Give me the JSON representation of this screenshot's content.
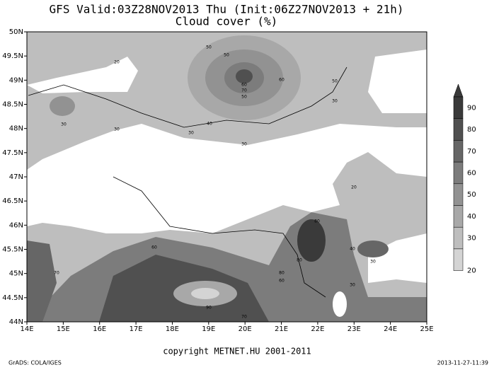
{
  "header": {
    "title": "GFS Valid:03Z28NOV2013 Thu (Init:06Z27NOV2013 + 21h)",
    "subtitle": "Cloud cover (%)"
  },
  "map": {
    "lat_labels": [
      "50N",
      "49.5N",
      "49N",
      "48.5N",
      "48N",
      "47.5N",
      "47N",
      "46.5N",
      "46N",
      "45.5N",
      "45N",
      "44.5N",
      "44N"
    ],
    "lon_labels": [
      "14E",
      "15E",
      "16E",
      "17E",
      "18E",
      "19E",
      "20E",
      "21E",
      "22E",
      "23E",
      "24E",
      "25E"
    ],
    "contour_labels": [
      "20",
      "30",
      "30",
      "50",
      "50",
      "60",
      "70",
      "50",
      "40",
      "30",
      "30",
      "50",
      "30",
      "20",
      "80",
      "60",
      "70",
      "80",
      "90",
      "70",
      "80",
      "60",
      "30",
      "30",
      "40",
      "60"
    ]
  },
  "colorbar": {
    "labels": [
      "90",
      "80",
      "70",
      "60",
      "50",
      "40",
      "30",
      "20"
    ]
  },
  "footer": {
    "copyright": "copyright METNET.HU 2001-2011",
    "left": "GrADS: COLA/IGES",
    "right": "2013-11-27-11:39"
  }
}
